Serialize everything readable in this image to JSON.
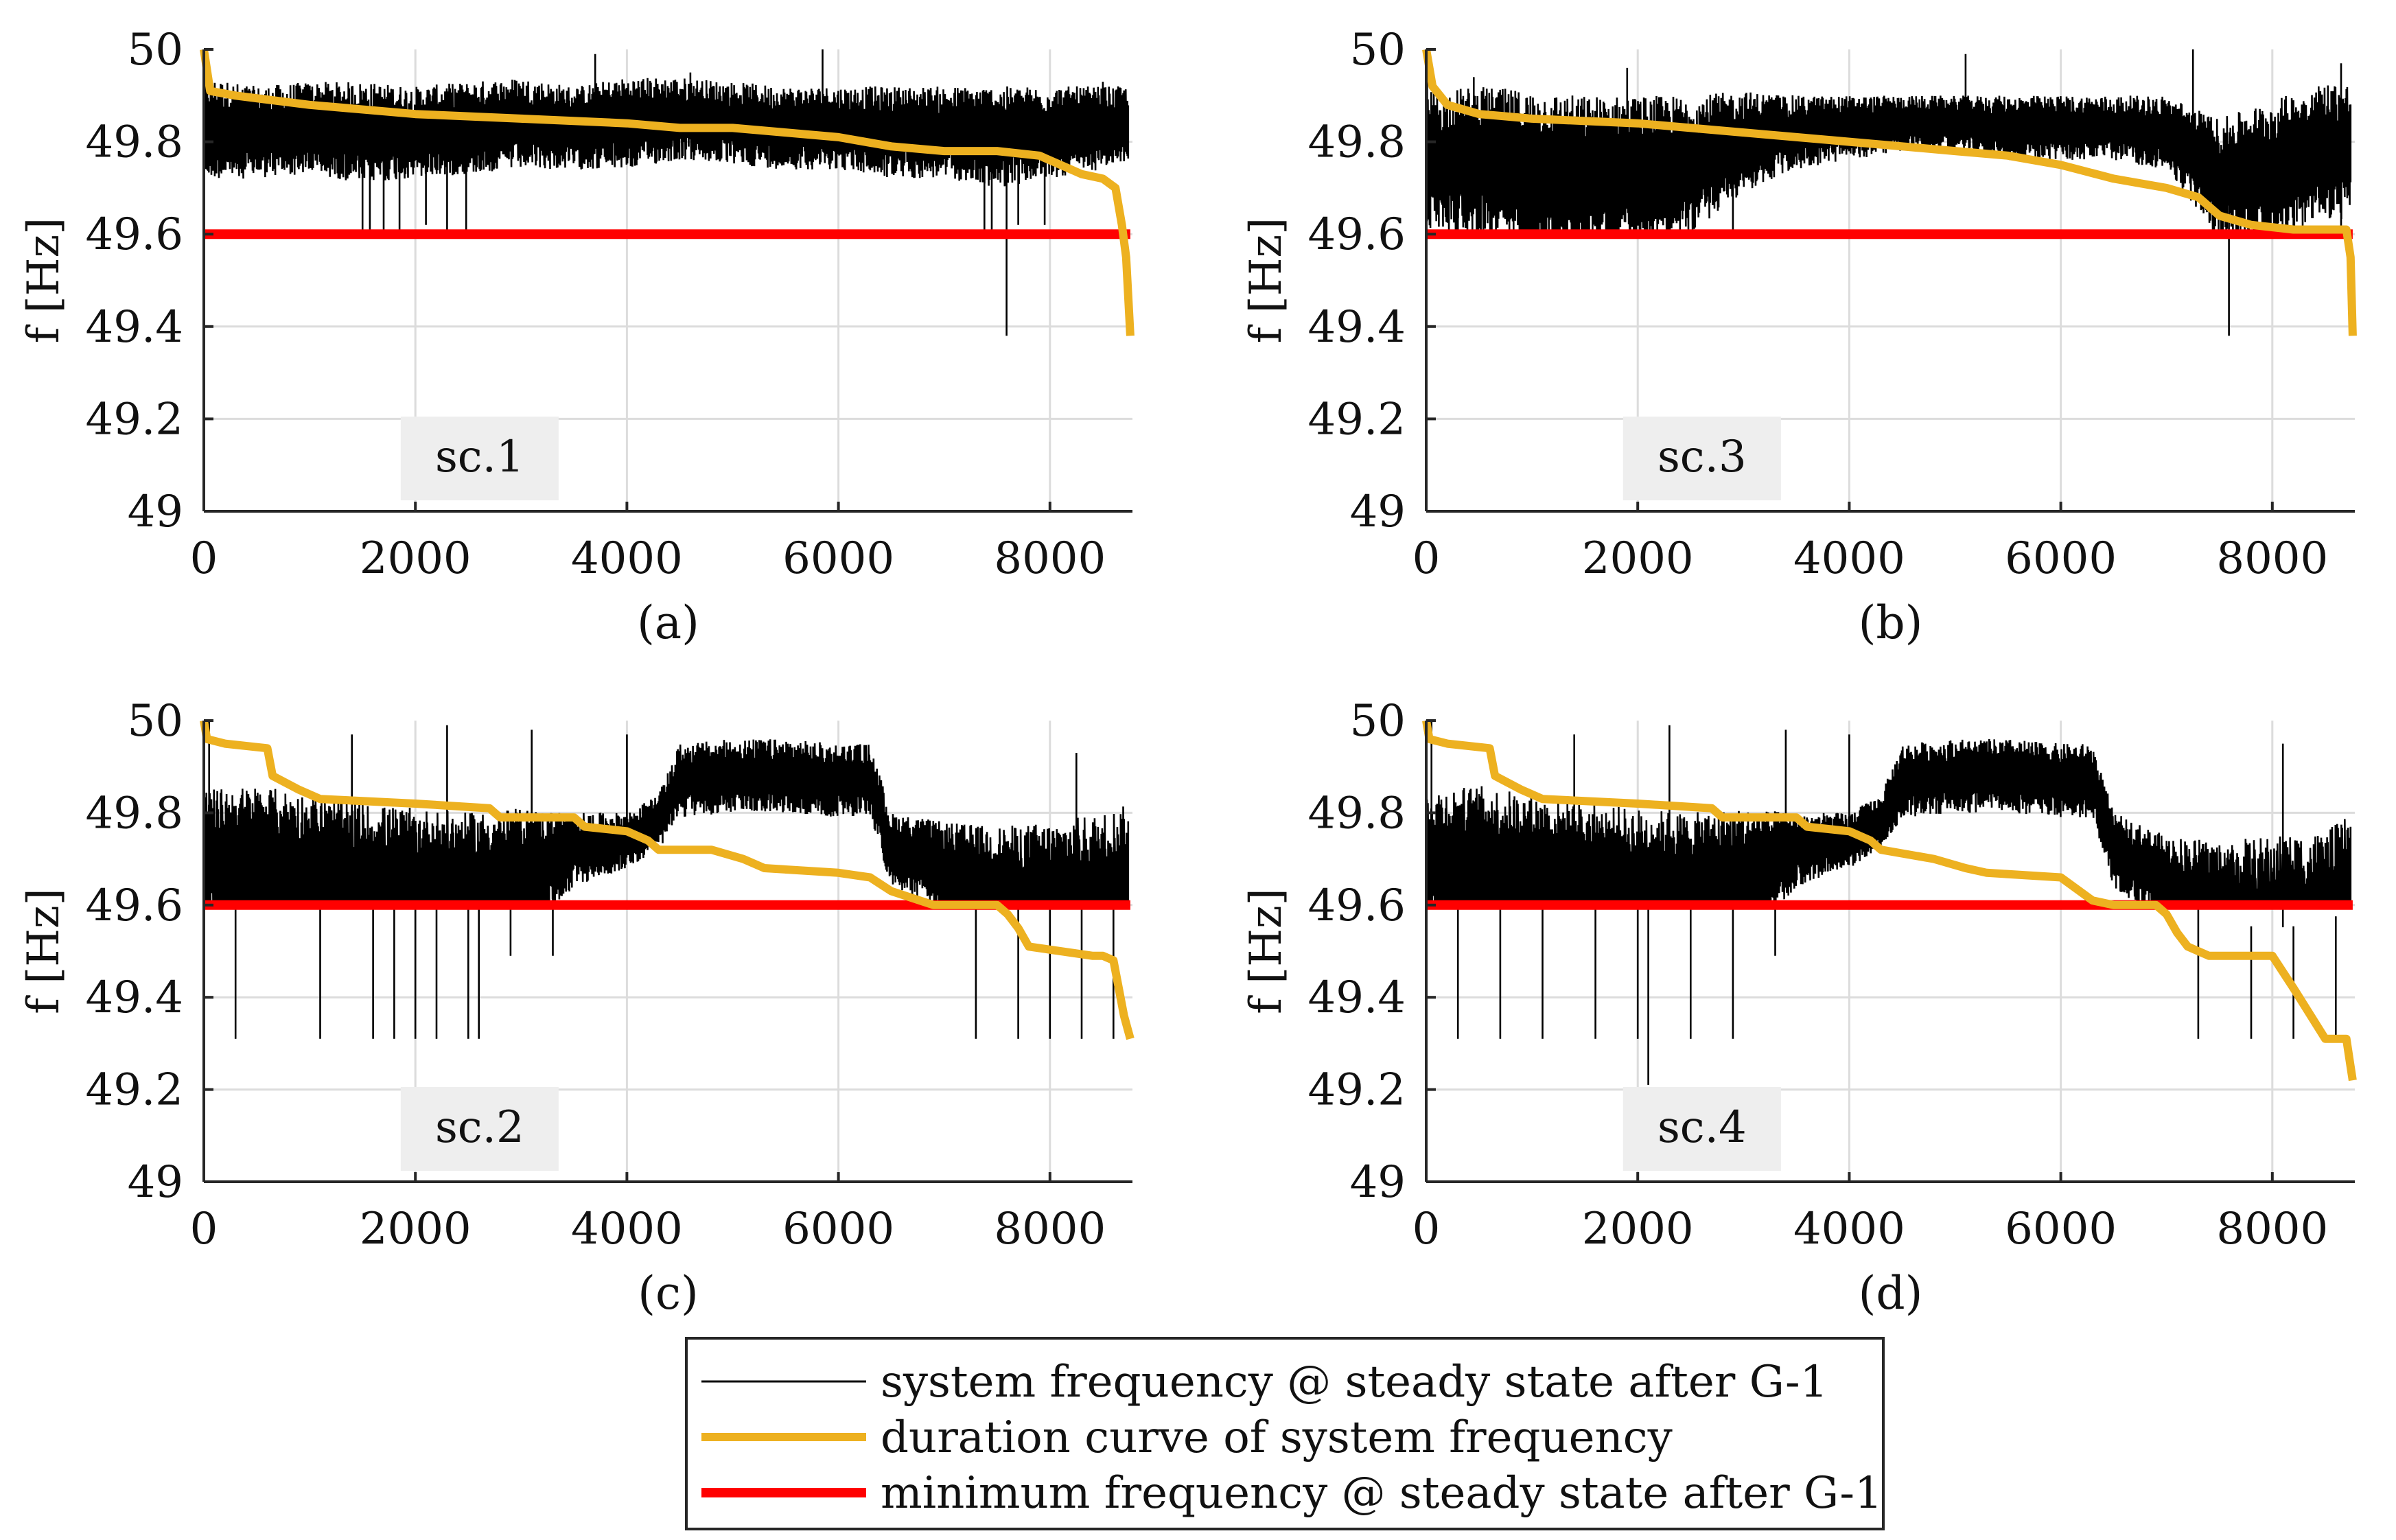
{
  "figure": {
    "legend": {
      "entries": [
        {
          "label": "system frequency @ steady state after G-1",
          "color": "#000000"
        },
        {
          "label": "duration curve of system frequency",
          "color": "#EDB120"
        },
        {
          "label": "minimum frequency @ steady state after G-1",
          "color": "#FF0000"
        }
      ],
      "location": "bottom-center"
    }
  },
  "chart_data": [
    {
      "type": "line",
      "panel_label": "(a)",
      "scenario_label": "sc.1",
      "ylabel": "f [Hz]",
      "xlabel": "",
      "xlim": [
        0,
        8760
      ],
      "ylim": [
        49,
        50
      ],
      "xticks": [
        "0",
        "2000",
        "4000",
        "6000",
        "8000"
      ],
      "yticks": [
        "49",
        "49.2",
        "49.4",
        "49.6",
        "49.8",
        "50"
      ],
      "grid": true,
      "series": [
        {
          "name": "system frequency @ steady state after G-1",
          "color": "#000000",
          "style": "noisy hourly trace",
          "x": [
            0,
            500,
            1000,
            1500,
            2000,
            2500,
            3000,
            3500,
            4000,
            4500,
            5000,
            5500,
            6000,
            6500,
            7000,
            7500,
            8000,
            8500,
            8760
          ],
          "y": [
            49.83,
            49.82,
            49.83,
            49.82,
            49.82,
            49.83,
            49.84,
            49.83,
            49.84,
            49.85,
            49.84,
            49.83,
            49.83,
            49.82,
            49.82,
            49.81,
            49.82,
            49.83,
            49.84
          ],
          "band": [
            0.11,
            0.1,
            0.1,
            0.11,
            0.1,
            0.1,
            0.1,
            0.09,
            0.1,
            0.09,
            0.09,
            0.09,
            0.09,
            0.1,
            0.1,
            0.11,
            0.1,
            0.09,
            0.08
          ],
          "dips": [
            {
              "x": 1500,
              "y": 49.61
            },
            {
              "x": 1570,
              "y": 49.61
            },
            {
              "x": 1700,
              "y": 49.61
            },
            {
              "x": 1850,
              "y": 49.61
            },
            {
              "x": 2100,
              "y": 49.62
            },
            {
              "x": 2300,
              "y": 49.61
            },
            {
              "x": 2480,
              "y": 49.61
            },
            {
              "x": 7380,
              "y": 49.61
            },
            {
              "x": 7450,
              "y": 49.61
            },
            {
              "x": 7590,
              "y": 49.38
            },
            {
              "x": 7700,
              "y": 49.62
            },
            {
              "x": 7950,
              "y": 49.62
            }
          ],
          "spikes": [
            {
              "x": 10,
              "y": 50
            },
            {
              "x": 3700,
              "y": 49.99
            },
            {
              "x": 5850,
              "y": 50
            },
            {
              "x": 4600,
              "y": 49.95
            },
            {
              "x": 8500,
              "y": 49.93
            }
          ]
        },
        {
          "name": "duration curve of system frequency",
          "color": "#EDB120",
          "x": [
            0,
            60,
            300,
            1000,
            2000,
            3000,
            4000,
            4500,
            5000,
            5500,
            6000,
            6500,
            7000,
            7500,
            7900,
            8300,
            8500,
            8620,
            8680,
            8720,
            8760
          ],
          "y": [
            50.0,
            49.91,
            49.9,
            49.88,
            49.86,
            49.85,
            49.84,
            49.83,
            49.83,
            49.82,
            49.81,
            49.79,
            49.78,
            49.78,
            49.77,
            49.73,
            49.72,
            49.7,
            49.62,
            49.55,
            49.38
          ]
        },
        {
          "name": "minimum frequency @ steady state after G-1",
          "color": "#FF0000",
          "x": [
            0,
            8760
          ],
          "y": [
            49.6,
            49.6
          ]
        }
      ]
    },
    {
      "type": "line",
      "panel_label": "(b)",
      "scenario_label": "sc.3",
      "ylabel": "f [Hz]",
      "xlabel": "",
      "xlim": [
        0,
        8760
      ],
      "ylim": [
        49,
        50
      ],
      "xticks": [
        "0",
        "2000",
        "4000",
        "6000",
        "8000"
      ],
      "yticks": [
        "49",
        "49.2",
        "49.4",
        "49.6",
        "49.8",
        "50"
      ],
      "grid": true,
      "series": [
        {
          "name": "system frequency @ steady state after G-1",
          "color": "#000000",
          "style": "noisy hourly trace",
          "x": [
            0,
            500,
            1000,
            1500,
            2000,
            2500,
            3000,
            3500,
            4000,
            4500,
            5000,
            5500,
            6000,
            6500,
            7000,
            7500,
            8000,
            8500,
            8760
          ],
          "y": [
            49.76,
            49.76,
            49.74,
            49.73,
            49.74,
            49.75,
            49.8,
            49.82,
            49.83,
            49.84,
            49.84,
            49.83,
            49.83,
            49.83,
            49.82,
            49.72,
            49.74,
            49.78,
            49.78
          ],
          "band": [
            0.15,
            0.16,
            0.17,
            0.17,
            0.16,
            0.15,
            0.11,
            0.08,
            0.07,
            0.06,
            0.06,
            0.07,
            0.07,
            0.07,
            0.08,
            0.13,
            0.15,
            0.15,
            0.15
          ],
          "dips": [
            {
              "x": 300,
              "y": 49.61
            },
            {
              "x": 1000,
              "y": 49.61
            },
            {
              "x": 1700,
              "y": 49.61
            },
            {
              "x": 2400,
              "y": 49.61
            },
            {
              "x": 2900,
              "y": 49.61
            },
            {
              "x": 7450,
              "y": 49.61
            },
            {
              "x": 7590,
              "y": 49.38
            },
            {
              "x": 8200,
              "y": 49.61
            },
            {
              "x": 8650,
              "y": 49.61
            }
          ],
          "spikes": [
            {
              "x": 10,
              "y": 50
            },
            {
              "x": 450,
              "y": 49.94
            },
            {
              "x": 1900,
              "y": 49.96
            },
            {
              "x": 5100,
              "y": 49.99
            },
            {
              "x": 7250,
              "y": 50
            },
            {
              "x": 8650,
              "y": 49.97
            }
          ]
        },
        {
          "name": "duration curve of system frequency",
          "color": "#EDB120",
          "x": [
            0,
            60,
            200,
            500,
            1000,
            2000,
            3000,
            4000,
            4500,
            5000,
            5500,
            6000,
            6500,
            7000,
            7300,
            7500,
            7800,
            8200,
            8700,
            8740,
            8760
          ],
          "y": [
            50.0,
            49.92,
            49.88,
            49.86,
            49.85,
            49.84,
            49.82,
            49.8,
            49.79,
            49.78,
            49.77,
            49.75,
            49.72,
            49.7,
            49.68,
            49.64,
            49.62,
            49.61,
            49.61,
            49.55,
            49.38
          ]
        },
        {
          "name": "minimum frequency @ steady state after G-1",
          "color": "#FF0000",
          "x": [
            0,
            8760
          ],
          "y": [
            49.6,
            49.6
          ]
        }
      ]
    },
    {
      "type": "line",
      "panel_label": "(c)",
      "scenario_label": "sc.2",
      "ylabel": "f [Hz]",
      "xlabel": "",
      "xlim": [
        0,
        8760
      ],
      "ylim": [
        49,
        50
      ],
      "xticks": [
        "0",
        "2000",
        "4000",
        "6000",
        "8000"
      ],
      "yticks": [
        "49",
        "49.2",
        "49.4",
        "49.6",
        "49.8",
        "50"
      ],
      "grid": true,
      "series": [
        {
          "name": "system frequency @ steady state after G-1",
          "color": "#000000",
          "style": "noisy hourly trace",
          "x": [
            0,
            500,
            1000,
            1500,
            2000,
            2500,
            3000,
            3500,
            4000,
            4300,
            4500,
            5000,
            5500,
            6000,
            6300,
            6500,
            7000,
            7500,
            8000,
            8500,
            8760
          ],
          "y": [
            49.7,
            49.68,
            49.66,
            49.64,
            49.63,
            49.64,
            49.66,
            49.72,
            49.74,
            49.78,
            49.87,
            49.88,
            49.88,
            49.87,
            49.87,
            49.72,
            49.68,
            49.62,
            49.6,
            49.62,
            49.64
          ],
          "band": [
            0.15,
            0.18,
            0.18,
            0.18,
            0.18,
            0.16,
            0.15,
            0.08,
            0.06,
            0.06,
            0.08,
            0.08,
            0.08,
            0.08,
            0.08,
            0.08,
            0.1,
            0.15,
            0.18,
            0.18,
            0.18
          ],
          "dips": [
            {
              "x": 300,
              "y": 49.31
            },
            {
              "x": 1100,
              "y": 49.31
            },
            {
              "x": 1600,
              "y": 49.31
            },
            {
              "x": 1800,
              "y": 49.31
            },
            {
              "x": 2000,
              "y": 49.31
            },
            {
              "x": 2200,
              "y": 49.31
            },
            {
              "x": 2500,
              "y": 49.31
            },
            {
              "x": 2600,
              "y": 49.31
            },
            {
              "x": 2900,
              "y": 49.49
            },
            {
              "x": 3300,
              "y": 49.49
            },
            {
              "x": 7300,
              "y": 49.31
            },
            {
              "x": 7700,
              "y": 49.31
            },
            {
              "x": 8000,
              "y": 49.31
            },
            {
              "x": 8300,
              "y": 49.31
            },
            {
              "x": 8600,
              "y": 49.31
            }
          ],
          "spikes": [
            {
              "x": 50,
              "y": 50
            },
            {
              "x": 1400,
              "y": 49.97
            },
            {
              "x": 2300,
              "y": 49.99
            },
            {
              "x": 3100,
              "y": 49.98
            },
            {
              "x": 4000,
              "y": 49.97
            },
            {
              "x": 8250,
              "y": 49.93
            }
          ]
        },
        {
          "name": "duration curve of system frequency",
          "color": "#EDB120",
          "x": [
            0,
            30,
            200,
            600,
            650,
            900,
            1100,
            2000,
            2700,
            2800,
            3500,
            3600,
            4000,
            4200,
            4300,
            4800,
            5100,
            5300,
            6000,
            6300,
            6500,
            6900,
            7000,
            7400,
            7500,
            7600,
            7700,
            7800,
            8400,
            8500,
            8600,
            8700,
            8760
          ],
          "y": [
            50.0,
            49.96,
            49.95,
            49.94,
            49.88,
            49.85,
            49.83,
            49.82,
            49.81,
            49.79,
            49.79,
            49.77,
            49.76,
            49.74,
            49.72,
            49.72,
            49.7,
            49.68,
            49.67,
            49.66,
            49.63,
            49.6,
            49.6,
            49.6,
            49.6,
            49.58,
            49.55,
            49.51,
            49.49,
            49.49,
            49.48,
            49.36,
            49.31
          ]
        },
        {
          "name": "minimum frequency @ steady state after G-1",
          "color": "#FF0000",
          "x": [
            0,
            8760
          ],
          "y": [
            49.6,
            49.6
          ]
        }
      ]
    },
    {
      "type": "line",
      "panel_label": "(d)",
      "scenario_label": "sc.4",
      "ylabel": "f [Hz]",
      "xlabel": "",
      "xlim": [
        0,
        8760
      ],
      "ylim": [
        49,
        50
      ],
      "xticks": [
        "0",
        "2000",
        "4000",
        "6000",
        "8000"
      ],
      "yticks": [
        "49",
        "49.2",
        "49.4",
        "49.6",
        "49.8",
        "50"
      ],
      "grid": true,
      "series": [
        {
          "name": "system frequency @ steady state after G-1",
          "color": "#000000",
          "style": "noisy hourly trace",
          "x": [
            0,
            500,
            1000,
            1500,
            2000,
            2500,
            3000,
            3500,
            4000,
            4300,
            4500,
            5000,
            5500,
            6000,
            6300,
            6500,
            7000,
            7500,
            8000,
            8500,
            8760
          ],
          "y": [
            49.7,
            49.68,
            49.66,
            49.64,
            49.63,
            49.64,
            49.66,
            49.72,
            49.74,
            49.78,
            49.87,
            49.88,
            49.88,
            49.87,
            49.87,
            49.72,
            49.65,
            49.56,
            49.55,
            49.56,
            49.6
          ],
          "band": [
            0.15,
            0.18,
            0.18,
            0.18,
            0.18,
            0.16,
            0.15,
            0.08,
            0.06,
            0.06,
            0.08,
            0.08,
            0.08,
            0.08,
            0.08,
            0.08,
            0.1,
            0.18,
            0.2,
            0.2,
            0.2
          ],
          "dips": [
            {
              "x": 300,
              "y": 49.31
            },
            {
              "x": 700,
              "y": 49.31
            },
            {
              "x": 1100,
              "y": 49.31
            },
            {
              "x": 1600,
              "y": 49.31
            },
            {
              "x": 2000,
              "y": 49.31
            },
            {
              "x": 2100,
              "y": 49.21
            },
            {
              "x": 2500,
              "y": 49.31
            },
            {
              "x": 2900,
              "y": 49.31
            },
            {
              "x": 3300,
              "y": 49.49
            },
            {
              "x": 7300,
              "y": 49.31
            },
            {
              "x": 7800,
              "y": 49.31
            },
            {
              "x": 8200,
              "y": 49.31
            },
            {
              "x": 8600,
              "y": 49.31
            }
          ],
          "spikes": [
            {
              "x": 50,
              "y": 50
            },
            {
              "x": 1400,
              "y": 49.97
            },
            {
              "x": 2300,
              "y": 49.99
            },
            {
              "x": 3400,
              "y": 49.98
            },
            {
              "x": 4000,
              "y": 49.97
            },
            {
              "x": 8100,
              "y": 49.95
            }
          ]
        },
        {
          "name": "duration curve of system frequency",
          "color": "#EDB120",
          "x": [
            0,
            30,
            200,
            600,
            650,
            900,
            1100,
            2000,
            2700,
            2800,
            3500,
            3600,
            4000,
            4200,
            4300,
            4800,
            5100,
            5300,
            6000,
            6300,
            6500,
            6900,
            7000,
            7100,
            7200,
            7400,
            8000,
            8200,
            8500,
            8700,
            8740,
            8760
          ],
          "y": [
            50.0,
            49.96,
            49.95,
            49.94,
            49.88,
            49.85,
            49.83,
            49.82,
            49.81,
            49.79,
            49.79,
            49.77,
            49.76,
            49.74,
            49.72,
            49.7,
            49.68,
            49.67,
            49.66,
            49.61,
            49.6,
            49.6,
            49.58,
            49.54,
            49.51,
            49.49,
            49.49,
            49.42,
            49.31,
            49.31,
            49.25,
            49.22
          ]
        },
        {
          "name": "minimum frequency @ steady state after G-1",
          "color": "#FF0000",
          "x": [
            0,
            8760
          ],
          "y": [
            49.6,
            49.6
          ]
        }
      ]
    }
  ]
}
